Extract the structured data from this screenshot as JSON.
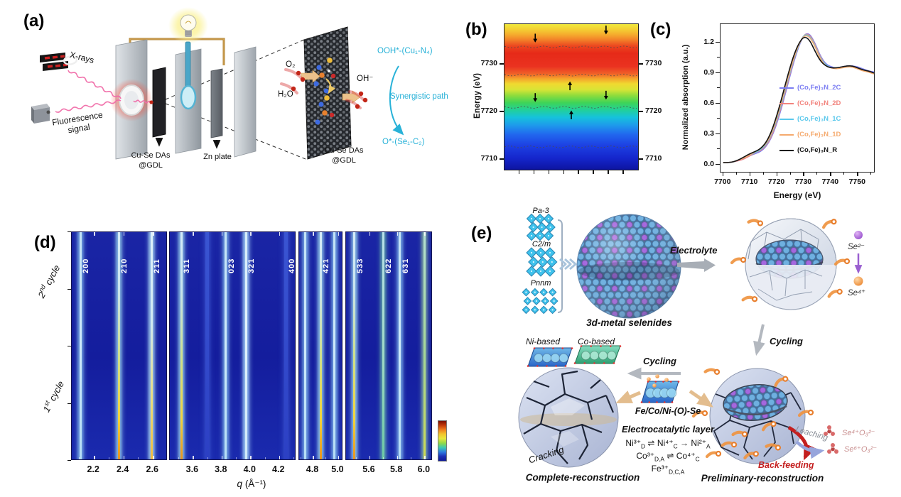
{
  "panel_a": {
    "tag": "(a)",
    "xrays": "X-rays",
    "fluorescence_html": "Fluorescence<br>signal",
    "gdl_label_html": "Cu-Se DAs<br>@GDL",
    "zn_label": "Zn plate",
    "flake_label_html": "Cu-Se DAs<br>@GDL",
    "o2": "O₂",
    "h2o": "H₂O",
    "oh": "OH⁻",
    "intermediate_top": "OOH*-(Cu₁-N₄)",
    "path_label": "Synergistic path",
    "intermediate_bottom": "O*-(Se₁-C₂)",
    "accent_cyan": "#29b2d8"
  },
  "panel_b": {
    "tag": "(b)"
  },
  "panel_c": {
    "tag": "(c)"
  },
  "panel_d": {
    "tag": "(d)"
  },
  "panel_e": {
    "tag": "(e)",
    "pa3": "Pa-3",
    "c2m": "C2/m",
    "pnnm": "Pnnm",
    "selenides": "3d-metal selenides",
    "electrolyte": "Electrolyte",
    "se2": "Se²⁻",
    "se4": "Se⁴⁺",
    "cycling_right": "Cycling",
    "cycling_mid": "Cycling",
    "ni_based": "Ni-based",
    "co_based": "Co-based",
    "layer_name": "Fe/Co/Ni-(O)-Se",
    "layer_role": "Electrocatalytic layer",
    "eq1_html": "Ni³⁺<sub>D</sub> ⇌ Ni⁴⁺<sub>C</sub> → Ni²⁺<sub>A</sub>",
    "eq2_html": "Co³⁺<sub>D,A</sub> ⇌ Co⁴⁺<sub>C</sub>",
    "eq3_html": "Fe³⁺<sub>D,C,A</sub>",
    "cracking": "Cracking",
    "complete": "Complete-reconstruction",
    "preliminary": "Preliminary-reconstruction",
    "leaching": "Leaching",
    "backfeeding": "Back-feeding",
    "selenite1": "Se⁴⁺O₃²⁻",
    "selenite2": "Se⁶⁺O₃²⁻"
  },
  "chart_data": [
    {
      "type": "heatmap",
      "panel": "b",
      "ylabel": "Energy (eV)",
      "ylim": [
        7707.8,
        7738.4
      ],
      "yticks": [
        7710,
        7720,
        7730
      ],
      "grid": false,
      "colormap_bottom_to_top": [
        [
          "#0d14a0",
          0
        ],
        [
          "#1526cc",
          0.08
        ],
        [
          "#1d42e4",
          0.17
        ],
        [
          "#2166ee",
          0.24
        ],
        [
          "#1e96ec",
          0.3
        ],
        [
          "#16c2dc",
          0.36
        ],
        [
          "#22d09a",
          0.41
        ],
        [
          "#3ed458",
          0.46
        ],
        [
          "#8fdc3c",
          0.51
        ],
        [
          "#d8e436",
          0.55
        ],
        [
          "#f0d930",
          0.59
        ],
        [
          "#f5a42c",
          0.625
        ],
        [
          "#f06028",
          0.66
        ],
        [
          "#ea3220",
          0.71
        ],
        [
          "#e62a18",
          0.8
        ],
        [
          "#ec4620",
          0.85
        ],
        [
          "#f27e28",
          0.89
        ],
        [
          "#f5ae2e",
          0.93
        ],
        [
          "#f3d434",
          0.97
        ],
        [
          "#f0e83c",
          1
        ]
      ],
      "contour_energies": [
        7733.6,
        7727.7,
        7720.9,
        7712.6
      ],
      "arrows": [
        {
          "x": 0.23,
          "energy": 7734.6,
          "dir": "down"
        },
        {
          "x": 0.76,
          "energy": 7736.3,
          "dir": "down"
        },
        {
          "x": 0.49,
          "energy": 7726.3,
          "dir": "up"
        },
        {
          "x": 0.23,
          "energy": 7722.1,
          "dir": "down"
        },
        {
          "x": 0.76,
          "energy": 7722.6,
          "dir": "down"
        },
        {
          "x": 0.5,
          "energy": 7720.2,
          "dir": "up"
        }
      ]
    },
    {
      "type": "line",
      "panel": "c",
      "title": "",
      "xlabel": "Energy (eV)",
      "ylabel": "Normalized absorption (a.u.)",
      "xlim": [
        7699,
        7756
      ],
      "ylim": [
        -0.07,
        1.38
      ],
      "xticks": [
        7700,
        7710,
        7720,
        7730,
        7740,
        7750
      ],
      "yticks": [
        "0.0",
        "0.3",
        "0.6",
        "0.9",
        "1.2"
      ],
      "legend_position": "center-right",
      "x": [
        7700,
        7702,
        7704,
        7706,
        7708,
        7710,
        7712,
        7714,
        7716,
        7718,
        7720,
        7722,
        7724,
        7726,
        7728,
        7730,
        7732,
        7734,
        7736,
        7738,
        7740,
        7742,
        7744,
        7746,
        7748,
        7750,
        7752,
        7754,
        7756
      ],
      "series": [
        {
          "name": "(Co,Fe)₃N_2C",
          "color": "#7b7df2",
          "values": [
            0.02,
            0.02,
            0.03,
            0.04,
            0.06,
            0.09,
            0.11,
            0.13,
            0.18,
            0.27,
            0.41,
            0.59,
            0.79,
            0.99,
            1.16,
            1.28,
            1.29,
            1.2,
            1.07,
            0.99,
            0.96,
            0.95,
            0.96,
            0.97,
            0.97,
            0.96,
            0.94,
            0.92,
            0.91
          ]
        },
        {
          "name": "(Co,Fe)₃N_2D",
          "color": "#f2837d",
          "values": [
            0.02,
            0.02,
            0.03,
            0.04,
            0.06,
            0.09,
            0.12,
            0.14,
            0.19,
            0.28,
            0.43,
            0.61,
            0.81,
            1.01,
            1.17,
            1.28,
            1.28,
            1.19,
            1.06,
            0.98,
            0.95,
            0.95,
            0.96,
            0.96,
            0.96,
            0.95,
            0.93,
            0.91,
            0.9
          ]
        },
        {
          "name": "(Co,Fe)₃N_1C",
          "color": "#5ac8ec",
          "values": [
            0.02,
            0.02,
            0.03,
            0.05,
            0.07,
            0.1,
            0.12,
            0.15,
            0.2,
            0.3,
            0.45,
            0.63,
            0.83,
            1.02,
            1.17,
            1.28,
            1.27,
            1.18,
            1.05,
            0.98,
            0.95,
            0.95,
            0.96,
            0.96,
            0.96,
            0.95,
            0.93,
            0.91,
            0.9
          ]
        },
        {
          "name": "(Co,Fe)₃N_1D",
          "color": "#f5aa6e",
          "values": [
            0.02,
            0.02,
            0.03,
            0.05,
            0.07,
            0.1,
            0.13,
            0.16,
            0.21,
            0.31,
            0.47,
            0.65,
            0.85,
            1.03,
            1.18,
            1.27,
            1.26,
            1.17,
            1.04,
            0.97,
            0.95,
            0.94,
            0.95,
            0.96,
            0.96,
            0.94,
            0.92,
            0.91,
            0.89
          ]
        },
        {
          "name": "(Co,Fe)₃N_R",
          "color": "#141414",
          "values": [
            0.02,
            0.02,
            0.03,
            0.05,
            0.08,
            0.11,
            0.13,
            0.16,
            0.22,
            0.33,
            0.49,
            0.68,
            0.88,
            1.06,
            1.19,
            1.26,
            1.23,
            1.12,
            1.02,
            0.97,
            0.95,
            0.95,
            0.96,
            0.97,
            0.97,
            0.95,
            0.93,
            0.92,
            0.9
          ]
        }
      ]
    },
    {
      "type": "heatmap",
      "panel": "d",
      "xlabel_html": "<i>q</i> (Å⁻¹)",
      "ylabels_html": [
        "2<sup>nd</sup> cycle",
        "1<sup>st</sup> cycle"
      ],
      "subpanels": [
        {
          "qmin": 2.05,
          "qmax": 2.7,
          "ticks": [
            "2.2",
            "2.4",
            "2.6"
          ],
          "streaks": [
            {
              "q": 2.11,
              "t": "w",
              "label": "200"
            },
            {
              "q": 2.37,
              "t": "y",
              "label": "210"
            },
            {
              "q": 2.59,
              "t": "y2",
              "label": "211"
            }
          ]
        },
        {
          "qmin": 3.44,
          "qmax": 4.32,
          "ticks": [
            "3.6",
            "3.8",
            "4.0",
            "4.2"
          ],
          "streaks": [
            {
              "q": 3.52,
              "t": "y",
              "label": "311"
            },
            {
              "q": 3.7,
              "t": "f"
            },
            {
              "q": 3.83,
              "t": "w",
              "label": "023"
            },
            {
              "q": 3.97,
              "t": "w2",
              "label": "321"
            },
            {
              "q": 4.25,
              "t": "f",
              "label": "400"
            }
          ]
        },
        {
          "qmin": 4.69,
          "qmax": 5.04,
          "ticks": [
            "4.8",
            "5.0"
          ],
          "streaks": [
            {
              "q": 4.74,
              "t": "w"
            },
            {
              "q": 4.86,
              "t": "y",
              "label": "421"
            },
            {
              "q": 4.97,
              "t": "w"
            }
          ]
        },
        {
          "qmin": 5.43,
          "qmax": 6.06,
          "ticks": [
            "5.6",
            "5.8",
            "6.0"
          ],
          "streaks": [
            {
              "q": 5.49,
              "t": "y",
              "label": "533"
            },
            {
              "q": 5.7,
              "t": "t",
              "label": "622"
            },
            {
              "q": 5.82,
              "t": "w",
              "label": "631"
            },
            {
              "q": 6.0,
              "t": "g"
            }
          ]
        }
      ],
      "colorbar_top_to_bottom": [
        "#7a0f00",
        "#c43a0a",
        "#ef7f1e",
        "#f2c52e",
        "#e8e63c",
        "#8fd84a",
        "#3cc8b4",
        "#2e7ae0",
        "#1c2fb4",
        "#101a96"
      ]
    }
  ]
}
